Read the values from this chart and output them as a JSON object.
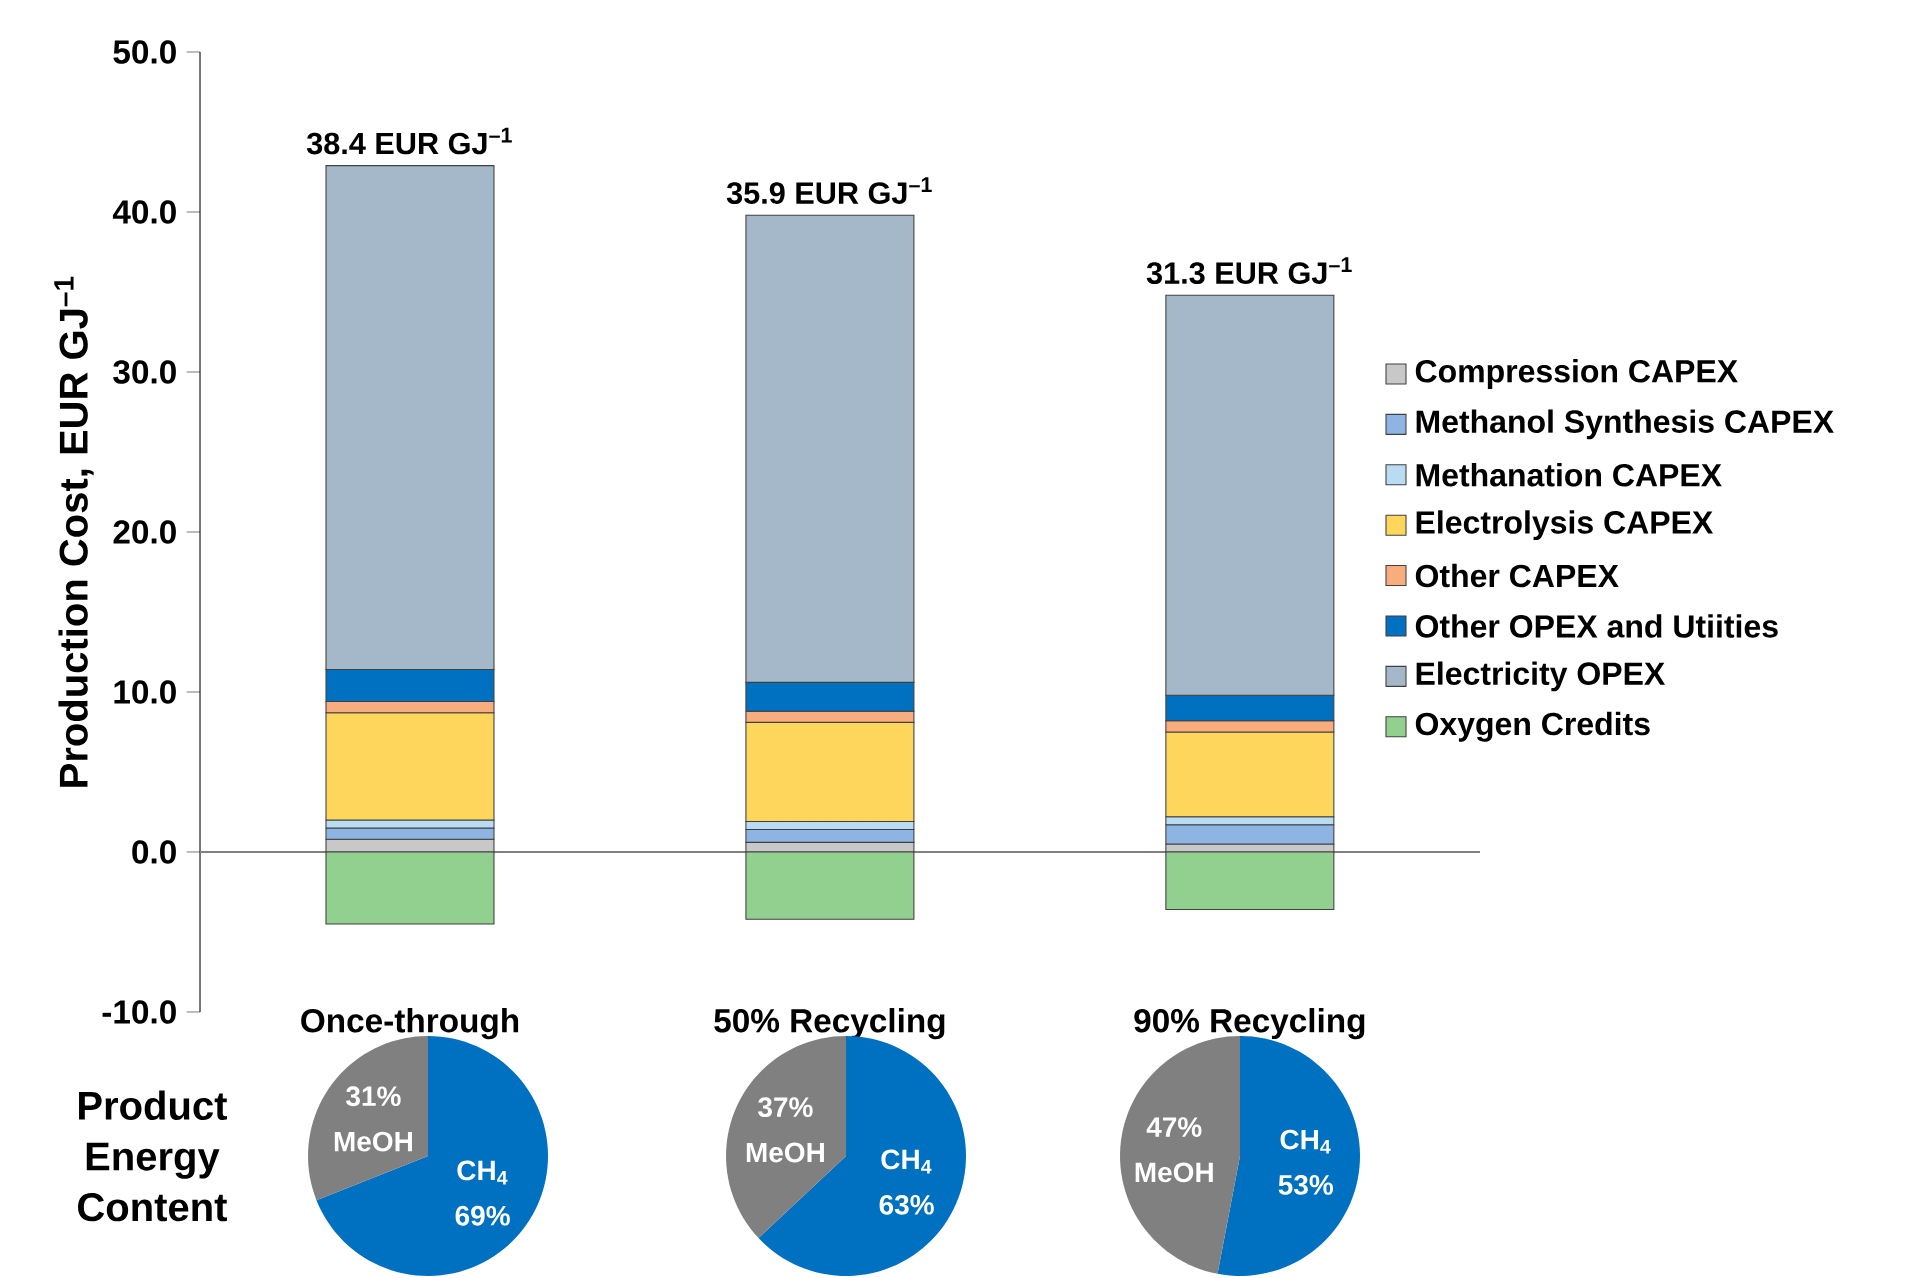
{
  "chart_data": [
    {
      "type": "bar",
      "stacked": true,
      "ylabel": "Production Cost, EUR GJ$^{–1}$",
      "categories": [
        "Once-through",
        "50% Recycling",
        "90% Recycling"
      ],
      "ylim": [
        -10,
        50
      ],
      "yticks": [
        {
          "value": -10,
          "label": "-10.0"
        },
        {
          "value": 0,
          "label": "0.0"
        },
        {
          "value": 10,
          "label": "10.0"
        },
        {
          "value": 20,
          "label": "20.0"
        },
        {
          "value": 30,
          "label": "30.0"
        },
        {
          "value": 40,
          "label": "40.0"
        },
        {
          "value": 50,
          "label": "50.0"
        }
      ],
      "legend": "right",
      "totals": [
        "38.4 EUR GJ$^{–1}$",
        "35.9 EUR GJ$^{–1}$",
        "31.3 EUR GJ$^{–1}$"
      ],
      "ref_lines": [
        {
          "axis": "y",
          "value": 0,
          "color": "#808080"
        }
      ],
      "series": [
        {
          "name": "Compression CAPEX",
          "color": "#c8c8c8",
          "values": [
            0.8,
            0.6,
            0.5
          ]
        },
        {
          "name": "Methanol Synthesis CAPEX",
          "color": "#8db4e2",
          "values": [
            0.7,
            0.8,
            1.2
          ]
        },
        {
          "name": "Methanation CAPEX",
          "color": "#b9dcf3",
          "values": [
            0.5,
            0.5,
            0.5
          ]
        },
        {
          "name": "Electrolysis CAPEX",
          "color": "#ffd65c",
          "values": [
            6.7,
            6.2,
            5.3
          ]
        },
        {
          "name": "Other CAPEX",
          "color": "#f9ad7f",
          "values": [
            0.7,
            0.7,
            0.7
          ]
        },
        {
          "name": "Other OPEX and Utiities",
          "color": "#0070c0",
          "values": [
            2.0,
            1.8,
            1.6
          ]
        },
        {
          "name": "Electricity OPEX",
          "color": "#a5b8ca",
          "values": [
            31.5,
            29.2,
            25.0
          ]
        },
        {
          "name": "Oxygen Credits",
          "color": "#92d08f",
          "values": [
            -4.5,
            -4.2,
            -3.6
          ]
        }
      ]
    },
    {
      "type": "pie",
      "annotations": [
        "Product Energy Content"
      ],
      "categories": [
        "CH$_{4}$",
        "MeOH"
      ],
      "values": [
        69,
        31
      ],
      "value_labels": [
        "69%",
        "31%"
      ],
      "colors": [
        "#0070c0",
        "#808080"
      ]
    },
    {
      "type": "pie",
      "categories": [
        "CH$_{4}$",
        "MeOH"
      ],
      "values": [
        63,
        37
      ],
      "value_labels": [
        "63%",
        "37%"
      ],
      "colors": [
        "#0070c0",
        "#808080"
      ]
    },
    {
      "type": "pie",
      "categories": [
        "CH$_{4}$",
        "MeOH"
      ],
      "values": [
        53,
        47
      ],
      "value_labels": [
        "53%",
        "47%"
      ],
      "colors": [
        "#0070c0",
        "#808080"
      ]
    }
  ]
}
